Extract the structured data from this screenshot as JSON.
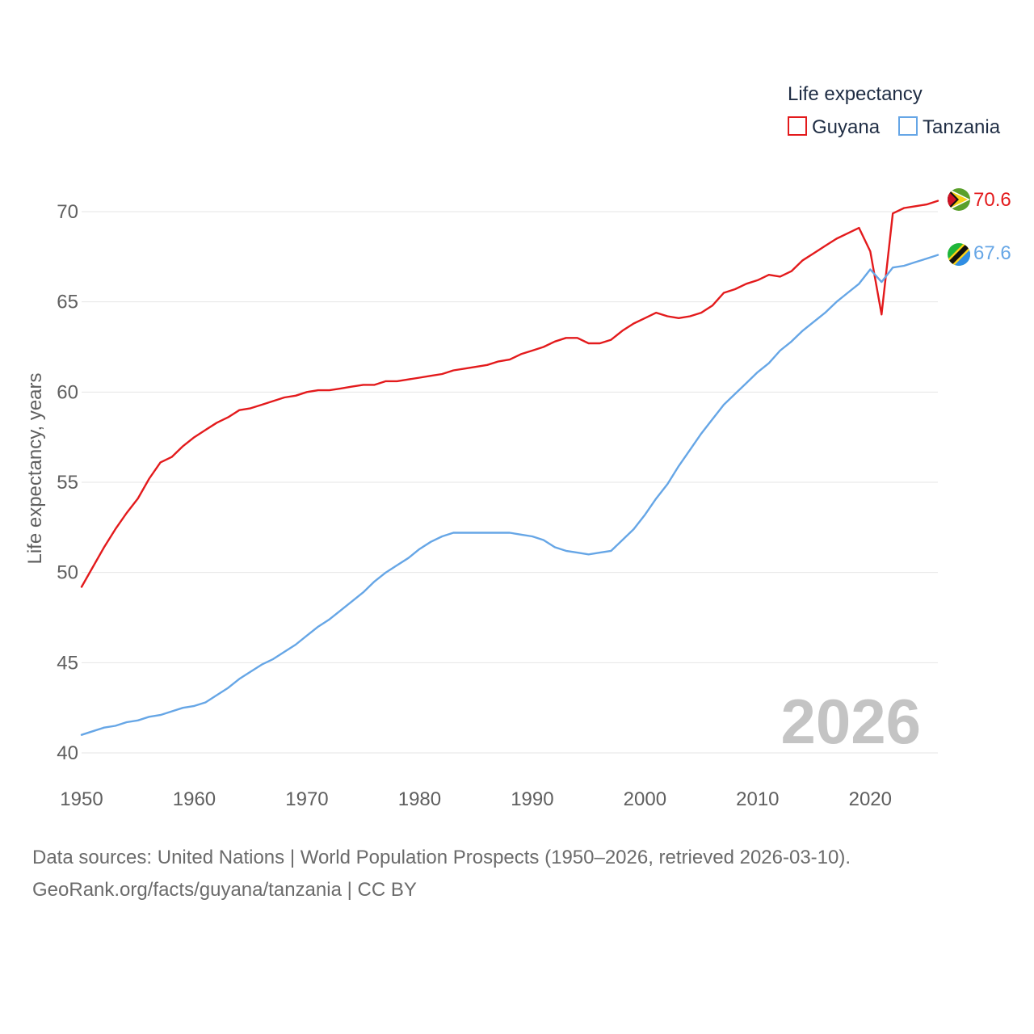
{
  "chart_data": {
    "type": "line",
    "ylabel": "Life expectancy, years",
    "xlabel": "",
    "xlim": [
      1950,
      2026
    ],
    "ylim": [
      40,
      72
    ],
    "x_ticks": [
      1950,
      1960,
      1970,
      1980,
      1990,
      2000,
      2010,
      2020
    ],
    "y_ticks": [
      40,
      45,
      50,
      55,
      60,
      65,
      70
    ],
    "grid": true,
    "legend_title": "Life expectancy",
    "legend_position": "top-right",
    "current_year": "2026",
    "series": [
      {
        "name": "Guyana",
        "color": "#e31a1c",
        "end_label": "70.6",
        "flag_icon": "guyana-flag-icon",
        "x": [
          1950,
          1951,
          1952,
          1953,
          1954,
          1955,
          1956,
          1957,
          1958,
          1959,
          1960,
          1961,
          1962,
          1963,
          1964,
          1965,
          1966,
          1967,
          1968,
          1969,
          1970,
          1971,
          1972,
          1973,
          1974,
          1975,
          1976,
          1977,
          1978,
          1979,
          1980,
          1981,
          1982,
          1983,
          1984,
          1985,
          1986,
          1987,
          1988,
          1989,
          1990,
          1991,
          1992,
          1993,
          1994,
          1995,
          1996,
          1997,
          1998,
          1999,
          2000,
          2001,
          2002,
          2003,
          2004,
          2005,
          2006,
          2007,
          2008,
          2009,
          2010,
          2011,
          2012,
          2013,
          2014,
          2015,
          2016,
          2017,
          2018,
          2019,
          2020,
          2021,
          2022,
          2023,
          2024,
          2025,
          2026
        ],
        "values": [
          49.2,
          50.3,
          51.4,
          52.4,
          53.3,
          54.1,
          55.2,
          56.1,
          56.4,
          57.0,
          57.5,
          57.9,
          58.3,
          58.6,
          59.0,
          59.1,
          59.3,
          59.5,
          59.7,
          59.8,
          60.0,
          60.1,
          60.1,
          60.2,
          60.3,
          60.4,
          60.4,
          60.6,
          60.6,
          60.7,
          60.8,
          60.9,
          61.0,
          61.2,
          61.3,
          61.4,
          61.5,
          61.7,
          61.8,
          62.1,
          62.3,
          62.5,
          62.8,
          63.0,
          63.0,
          62.7,
          62.7,
          62.9,
          63.4,
          63.8,
          64.1,
          64.4,
          64.2,
          64.1,
          64.2,
          64.4,
          64.8,
          65.5,
          65.7,
          66.0,
          66.2,
          66.5,
          66.4,
          66.7,
          67.3,
          67.7,
          68.1,
          68.5,
          68.8,
          69.1,
          67.8,
          64.3,
          69.9,
          70.2,
          70.3,
          70.4,
          70.6
        ]
      },
      {
        "name": "Tanzania",
        "color": "#66a6e6",
        "end_label": "67.6",
        "flag_icon": "tanzania-flag-icon",
        "x": [
          1950,
          1951,
          1952,
          1953,
          1954,
          1955,
          1956,
          1957,
          1958,
          1959,
          1960,
          1961,
          1962,
          1963,
          1964,
          1965,
          1966,
          1967,
          1968,
          1969,
          1970,
          1971,
          1972,
          1973,
          1974,
          1975,
          1976,
          1977,
          1978,
          1979,
          1980,
          1981,
          1982,
          1983,
          1984,
          1985,
          1986,
          1987,
          1988,
          1989,
          1990,
          1991,
          1992,
          1993,
          1994,
          1995,
          1996,
          1997,
          1998,
          1999,
          2000,
          2001,
          2002,
          2003,
          2004,
          2005,
          2006,
          2007,
          2008,
          2009,
          2010,
          2011,
          2012,
          2013,
          2014,
          2015,
          2016,
          2017,
          2018,
          2019,
          2020,
          2021,
          2022,
          2023,
          2024,
          2025,
          2026
        ],
        "values": [
          41.0,
          41.2,
          41.4,
          41.5,
          41.7,
          41.8,
          42.0,
          42.1,
          42.3,
          42.5,
          42.6,
          42.8,
          43.2,
          43.6,
          44.1,
          44.5,
          44.9,
          45.2,
          45.6,
          46.0,
          46.5,
          47.0,
          47.4,
          47.9,
          48.4,
          48.9,
          49.5,
          50.0,
          50.4,
          50.8,
          51.3,
          51.7,
          52.0,
          52.2,
          52.2,
          52.2,
          52.2,
          52.2,
          52.2,
          52.1,
          52.0,
          51.8,
          51.4,
          51.2,
          51.1,
          51.0,
          51.1,
          51.2,
          51.8,
          52.4,
          53.2,
          54.1,
          54.9,
          55.9,
          56.8,
          57.7,
          58.5,
          59.3,
          59.9,
          60.5,
          61.1,
          61.6,
          62.3,
          62.8,
          63.4,
          63.9,
          64.4,
          65.0,
          65.5,
          66.0,
          66.8,
          66.1,
          66.9,
          67.0,
          67.2,
          67.4,
          67.6
        ]
      }
    ]
  },
  "footer": {
    "line1": "Data sources: United Nations | World Population Prospects (1950–2026, retrieved 2026-03-10).",
    "line2": "GeoRank.org/facts/guyana/tanzania | CC BY"
  }
}
